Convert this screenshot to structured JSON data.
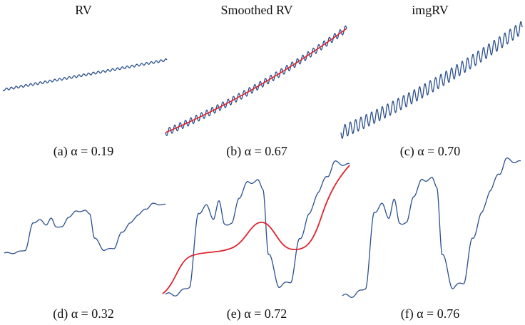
{
  "columns": [
    "RV",
    "Smoothed RV",
    "imgRV"
  ],
  "captions": [
    "(a) α = 0.19",
    "(b) α = 0.67",
    "(c) α = 0.70",
    "(d) α = 0.32",
    "(e) α = 0.72",
    "(f) α = 0.76"
  ],
  "colors": {
    "signal": "#2a4f8f",
    "smoothed": "#e0232e"
  }
}
